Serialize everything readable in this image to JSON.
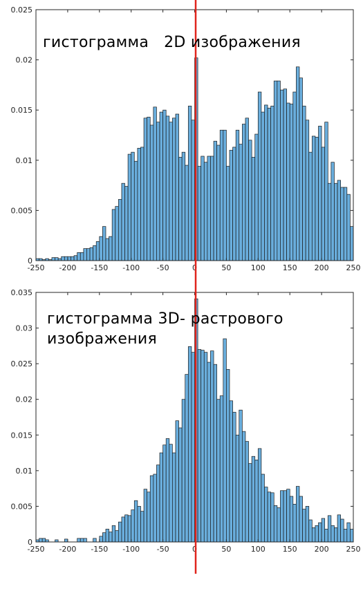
{
  "red_line_color": "#e0241c",
  "bar_fill": "#6aaedd",
  "bar_stroke": "#1a1a1a",
  "chart_data": [
    {
      "type": "bar",
      "annotation": [
        "гистограмма   2D изображения"
      ],
      "xlabel": "",
      "ylabel": "",
      "xlim": [
        -250,
        250
      ],
      "ylim": [
        0,
        0.025
      ],
      "grid": false,
      "x_ticks": [
        -250,
        -200,
        -150,
        -100,
        -50,
        0,
        50,
        100,
        150,
        200,
        250
      ],
      "y_ticks": [
        0,
        0.005,
        0.01,
        0.015,
        0.02,
        0.025
      ],
      "x_tick_labels": [
        "-250",
        "-200",
        "-150",
        "-100",
        "-50",
        "0",
        "50",
        "100",
        "150",
        "200",
        "250"
      ],
      "y_tick_labels": [
        "0",
        "0.005",
        "0.01",
        "0.015",
        "0.02",
        "0.025"
      ],
      "bin_start": -250,
      "bin_width": 5,
      "values": [
        0.0002,
        0.0002,
        0.0001,
        0.0002,
        0.0001,
        0.0003,
        0.0003,
        0.0002,
        0.0004,
        0.0004,
        0.0004,
        0.0004,
        0.0005,
        0.0008,
        0.0008,
        0.0012,
        0.0012,
        0.0013,
        0.0015,
        0.0019,
        0.0024,
        0.0034,
        0.0022,
        0.0024,
        0.0051,
        0.0054,
        0.0061,
        0.0077,
        0.0074,
        0.0106,
        0.0108,
        0.0099,
        0.0112,
        0.0113,
        0.0142,
        0.0143,
        0.0135,
        0.0153,
        0.0138,
        0.0148,
        0.015,
        0.0144,
        0.0138,
        0.0142,
        0.0146,
        0.0103,
        0.0108,
        0.0095,
        0.0154,
        0.014,
        0.0202,
        0.0094,
        0.0104,
        0.0098,
        0.0104,
        0.0104,
        0.0119,
        0.0115,
        0.013,
        0.013,
        0.0094,
        0.011,
        0.0113,
        0.013,
        0.0116,
        0.0136,
        0.0142,
        0.012,
        0.0103,
        0.0126,
        0.0168,
        0.0148,
        0.0155,
        0.0152,
        0.0154,
        0.0179,
        0.0179,
        0.017,
        0.0171,
        0.0157,
        0.0156,
        0.0168,
        0.0193,
        0.0182,
        0.0154,
        0.014,
        0.0108,
        0.0124,
        0.0123,
        0.0134,
        0.0113,
        0.0138,
        0.0077,
        0.0098,
        0.0077,
        0.008,
        0.0073,
        0.0073,
        0.0066,
        0.0034
      ]
    },
    {
      "type": "bar",
      "annotation": [
        "гистограмма 3D- растрового",
        "изображения"
      ],
      "xlabel": "",
      "ylabel": "",
      "xlim": [
        -250,
        250
      ],
      "ylim": [
        0,
        0.035
      ],
      "grid": false,
      "x_ticks": [
        -250,
        -200,
        -150,
        -100,
        -50,
        0,
        50,
        100,
        150,
        200,
        250
      ],
      "y_ticks": [
        0,
        0.005,
        0.01,
        0.015,
        0.02,
        0.025,
        0.03,
        0.035
      ],
      "x_tick_labels": [
        "-250",
        "-200",
        "-150",
        "-100",
        "-50",
        "0",
        "50",
        "100",
        "150",
        "200",
        "250"
      ],
      "y_tick_labels": [
        "0",
        "0.005",
        "0.01",
        "0.015",
        "0.02",
        "0.025",
        "0.03",
        "0.035"
      ],
      "bin_start": -250,
      "bin_width": 5,
      "values": [
        0.0003,
        0.0005,
        0.0005,
        0.0003,
        0.0,
        0.0,
        0.0003,
        0.0,
        0.0,
        0.0004,
        0.0,
        0.0,
        0.0,
        0.0005,
        0.0005,
        0.0005,
        0.0,
        0.0,
        0.0005,
        0.0,
        0.0008,
        0.0013,
        0.0018,
        0.0014,
        0.0023,
        0.0016,
        0.0028,
        0.0035,
        0.0038,
        0.0037,
        0.0045,
        0.0058,
        0.005,
        0.0043,
        0.0074,
        0.007,
        0.0093,
        0.0095,
        0.0108,
        0.0125,
        0.0136,
        0.0145,
        0.0137,
        0.0125,
        0.017,
        0.016,
        0.02,
        0.0235,
        0.0274,
        0.0266,
        0.0341,
        0.027,
        0.0269,
        0.0266,
        0.0252,
        0.0268,
        0.0249,
        0.02,
        0.0205,
        0.0285,
        0.0242,
        0.0198,
        0.0182,
        0.015,
        0.0185,
        0.0155,
        0.0141,
        0.011,
        0.012,
        0.0115,
        0.0131,
        0.0095,
        0.0077,
        0.007,
        0.0069,
        0.0051,
        0.0048,
        0.0072,
        0.0072,
        0.0074,
        0.0064,
        0.0053,
        0.0078,
        0.0064,
        0.0046,
        0.005,
        0.0031,
        0.002,
        0.0023,
        0.0027,
        0.0033,
        0.0018,
        0.0037,
        0.0023,
        0.002,
        0.0038,
        0.0032,
        0.0018,
        0.0027,
        0.0018
      ]
    }
  ]
}
